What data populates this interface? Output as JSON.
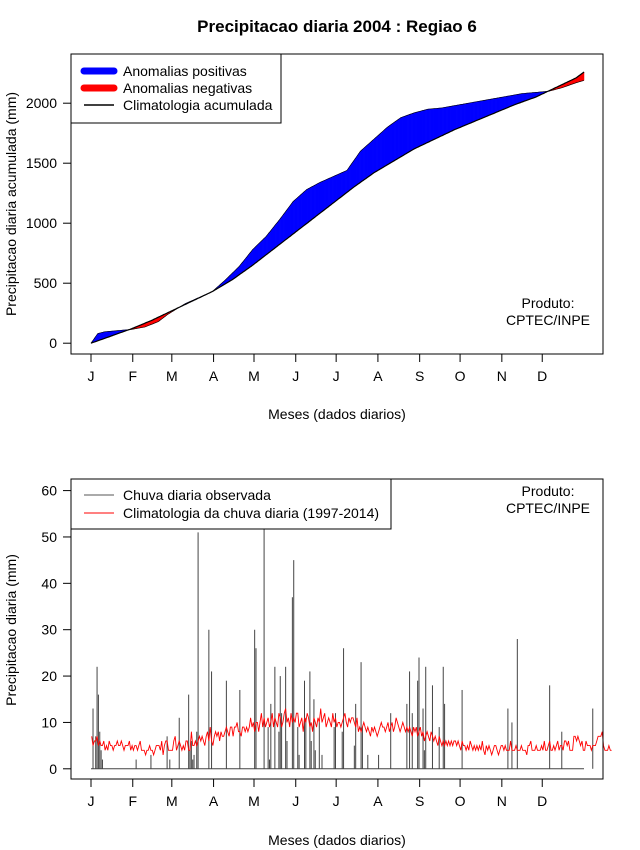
{
  "page_title": "Precipitacao diaria 2004 : Regiao 6",
  "chart_data": [
    {
      "type": "area",
      "ylabel": "Precipitacao diaria acumulada (mm)",
      "xlabel": "Meses (dados diarios)",
      "ylim": [
        -90,
        2410
      ],
      "yticks": [
        0,
        500,
        1000,
        1500,
        2000
      ],
      "months": [
        "J",
        "F",
        "M",
        "A",
        "M",
        "J",
        "J",
        "A",
        "S",
        "O",
        "N",
        "D"
      ],
      "days_in_year": 366,
      "legend": [
        {
          "label": "Anomalias positivas",
          "color": "#0000ff",
          "kind": "thick"
        },
        {
          "label": "Anomalias negativas",
          "color": "#ff0000",
          "kind": "thick"
        },
        {
          "label": "Climatologia acumulada",
          "color": "#000000",
          "kind": "line"
        }
      ],
      "legend_position": "top-left",
      "product_note": [
        "Produto:",
        "CPTEC/INPE"
      ],
      "observed_accumulated": {
        "day": [
          0,
          5,
          10,
          20,
          30,
          40,
          50,
          57,
          70,
          90,
          100,
          110,
          120,
          130,
          140,
          150,
          160,
          170,
          180,
          190,
          200,
          210,
          220,
          230,
          240,
          250,
          260,
          270,
          280,
          290,
          300,
          310,
          320,
          330,
          340,
          350,
          360,
          366
        ],
        "value": [
          0,
          80,
          95,
          105,
          115,
          135,
          180,
          240,
          330,
          430,
          530,
          640,
          780,
          890,
          1030,
          1180,
          1280,
          1340,
          1390,
          1440,
          1600,
          1700,
          1800,
          1880,
          1920,
          1950,
          1960,
          1980,
          2000,
          2020,
          2040,
          2060,
          2080,
          2090,
          2100,
          2130,
          2170,
          2190
        ]
      },
      "climatology_accumulated": {
        "day": [
          0,
          15,
          30,
          45,
          60,
          75,
          90,
          105,
          120,
          135,
          150,
          165,
          180,
          195,
          210,
          225,
          240,
          255,
          270,
          285,
          300,
          315,
          330,
          345,
          360,
          366
        ],
        "value": [
          0,
          60,
          120,
          190,
          270,
          350,
          430,
          530,
          650,
          780,
          910,
          1040,
          1170,
          1300,
          1420,
          1520,
          1620,
          1700,
          1780,
          1850,
          1920,
          1990,
          2050,
          2130,
          2210,
          2260
        ]
      }
    },
    {
      "type": "bar",
      "ylabel": "Precipitacao diaria (mm)",
      "xlabel": "Meses (dados diarios)",
      "ylim": [
        -2.2,
        62.5
      ],
      "yticks": [
        0,
        10,
        20,
        30,
        40,
        50,
        60
      ],
      "months": [
        "J",
        "F",
        "M",
        "A",
        "M",
        "J",
        "J",
        "A",
        "S",
        "O",
        "N",
        "D"
      ],
      "days_in_year": 366,
      "legend": [
        {
          "label": "Chuva diaria observada",
          "color": "#555555",
          "kind": "line"
        },
        {
          "label": "Climatologia da chuva diaria (1997-2014)",
          "color": "#ff0000",
          "kind": "line"
        }
      ],
      "legend_position": "top-left",
      "product_note": [
        "Produto:",
        "CPTEC/INPE"
      ],
      "observed_daily": [
        0,
        13,
        0,
        7,
        22,
        16,
        8,
        4,
        2,
        0,
        0,
        0,
        0,
        0,
        0,
        0,
        0,
        0,
        0,
        0,
        0,
        0,
        0,
        0,
        0,
        0,
        0,
        0,
        0,
        0,
        0,
        0,
        0,
        2,
        0,
        0,
        0,
        0,
        0,
        0,
        0,
        0,
        0,
        0,
        3,
        0,
        0,
        0,
        0,
        0,
        0,
        0,
        0,
        0,
        0,
        0,
        7,
        0,
        2,
        0,
        0,
        0,
        0,
        0,
        0,
        11,
        0,
        0,
        0,
        0,
        0,
        0,
        16,
        4,
        6,
        2,
        3,
        0,
        8,
        51,
        0,
        0,
        0,
        0,
        0,
        0,
        0,
        30,
        0,
        21,
        0,
        0,
        0,
        0,
        0,
        0,
        0,
        0,
        0,
        0,
        19,
        0,
        0,
        0,
        0,
        0,
        0,
        0,
        0,
        0,
        17,
        0,
        0,
        0,
        0,
        0,
        0,
        0,
        0,
        0,
        0,
        30,
        26,
        0,
        0,
        0,
        0,
        0,
        55,
        0,
        0,
        9,
        2,
        14,
        0,
        0,
        22,
        0,
        0,
        8,
        20,
        12,
        0,
        0,
        22,
        6,
        0,
        0,
        0,
        37,
        45,
        0,
        0,
        9,
        3,
        0,
        0,
        0,
        19,
        11,
        0,
        0,
        21,
        6,
        0,
        15,
        4,
        0,
        0,
        10,
        0,
        3,
        0,
        0,
        0,
        0,
        0,
        0,
        0,
        0,
        9,
        12,
        0,
        0,
        0,
        0,
        8,
        26,
        0,
        0,
        0,
        0,
        0,
        0,
        0,
        5,
        14,
        0,
        0,
        0,
        23,
        9,
        0,
        0,
        0,
        3,
        0,
        0,
        0,
        0,
        0,
        0,
        0,
        3,
        0,
        0,
        0,
        0,
        0,
        0,
        0,
        0,
        12,
        0,
        0,
        0,
        0,
        0,
        0,
        0,
        0,
        0,
        0,
        0,
        14,
        0,
        21,
        0,
        12,
        0,
        0,
        0,
        19,
        24,
        0,
        0,
        13,
        4,
        22,
        0,
        0,
        0,
        0,
        18,
        0,
        0,
        0,
        0,
        9,
        0,
        0,
        22,
        14,
        0,
        0,
        0,
        0,
        0,
        0,
        0,
        0,
        0,
        0,
        0,
        0,
        17,
        0,
        0,
        0,
        0,
        0,
        0,
        0,
        0,
        0,
        0,
        0,
        0,
        0,
        0,
        0,
        0,
        0,
        0,
        0,
        0,
        0,
        0,
        0,
        0,
        0,
        0,
        0,
        0,
        0,
        0,
        0,
        0,
        0,
        13,
        0,
        0,
        10,
        0,
        0,
        0,
        28,
        0,
        0,
        0,
        0,
        0,
        0,
        0,
        0,
        0,
        0,
        0,
        0,
        0,
        0,
        0,
        0,
        0,
        0,
        0,
        0,
        0,
        0,
        0,
        18,
        0,
        0,
        0,
        0,
        0,
        0,
        0,
        0,
        8,
        0,
        0,
        0,
        0,
        0,
        0,
        0,
        0,
        0,
        0,
        0,
        0,
        0,
        0,
        0,
        0,
        0,
        0,
        0,
        0,
        0,
        0,
        13,
        0,
        0,
        0,
        0,
        0,
        0,
        0,
        0,
        0,
        0,
        0,
        0,
        0,
        0,
        0,
        0,
        0,
        0,
        0,
        0,
        0,
        0,
        0,
        0,
        0,
        0,
        0,
        0,
        0,
        0
      ],
      "climatology_daily": [
        7,
        5,
        6,
        6,
        7,
        5,
        6,
        5,
        5,
        6,
        4,
        5,
        4,
        6,
        5,
        5,
        4,
        5,
        5,
        6,
        5,
        5,
        6,
        5,
        4,
        5,
        5,
        5,
        6,
        4,
        5,
        4,
        5,
        5,
        4,
        5,
        6,
        4,
        4,
        4,
        3,
        4,
        4,
        5,
        4,
        4,
        3,
        4,
        5,
        5,
        5,
        4,
        6,
        3,
        5,
        6,
        6,
        4,
        4,
        4,
        4,
        6,
        7,
        4,
        5,
        6,
        5,
        4,
        5,
        4,
        6,
        6,
        4,
        4,
        8,
        5,
        5,
        6,
        5,
        6,
        7,
        6,
        7,
        6,
        5,
        7,
        8,
        6,
        9,
        6,
        5,
        7,
        8,
        7,
        8,
        6,
        8,
        7,
        7,
        8,
        9,
        8,
        7,
        9,
        9,
        7,
        9,
        9,
        10,
        8,
        8,
        7,
        9,
        9,
        8,
        9,
        8,
        9,
        11,
        9,
        10,
        8,
        10,
        10,
        8,
        10,
        12,
        9,
        11,
        9,
        10,
        11,
        9,
        10,
        12,
        9,
        11,
        10,
        9,
        12,
        11,
        9,
        10,
        12,
        13,
        10,
        11,
        9,
        12,
        10,
        11,
        10,
        12,
        12,
        9,
        10,
        11,
        8,
        11,
        10,
        12,
        11,
        9,
        10,
        8,
        11,
        10,
        9,
        11,
        10,
        13,
        10,
        11,
        12,
        9,
        10,
        11,
        10,
        9,
        12,
        10,
        11,
        9,
        10,
        10,
        9,
        10,
        11,
        12,
        10,
        9,
        11,
        10,
        11,
        11,
        10,
        9,
        11,
        8,
        9,
        8,
        9,
        10,
        9,
        8,
        9,
        8,
        7,
        9,
        8,
        9,
        8,
        7,
        8,
        9,
        10,
        9,
        9,
        8,
        9,
        10,
        8,
        9,
        10,
        8,
        9,
        11,
        10,
        9,
        8,
        9,
        10,
        9,
        8,
        9,
        8,
        9,
        8,
        7,
        9,
        8,
        9,
        7,
        8,
        9,
        7,
        8,
        6,
        7,
        8,
        7,
        6,
        8,
        7,
        6,
        7,
        6,
        5,
        7,
        6,
        5,
        6,
        5,
        6,
        5,
        6,
        5,
        6,
        5,
        6,
        6,
        5,
        6,
        5,
        4,
        6,
        5,
        5,
        4,
        5,
        4,
        6,
        5,
        4,
        5,
        4,
        5,
        4,
        5,
        4,
        6,
        4,
        3,
        5,
        4,
        5,
        4,
        3,
        4,
        5,
        5,
        4,
        3,
        4,
        5,
        5,
        4,
        5,
        4,
        4,
        4,
        6,
        4,
        4,
        4,
        5,
        4,
        4,
        4,
        5,
        4,
        4,
        4,
        3,
        5,
        5,
        6,
        4,
        4,
        4,
        5,
        4,
        4,
        4,
        5,
        4,
        6,
        4,
        4,
        5,
        6,
        4,
        4,
        5,
        4,
        5,
        6,
        4,
        5,
        5,
        4,
        6,
        6,
        5,
        6,
        4,
        4,
        4,
        7,
        7,
        6,
        7,
        6,
        5,
        6,
        4,
        4,
        6,
        5,
        5,
        5,
        4,
        5,
        5,
        5,
        6,
        7,
        7,
        7,
        8,
        5,
        4,
        4,
        4,
        5,
        4,
        4
      ]
    }
  ]
}
